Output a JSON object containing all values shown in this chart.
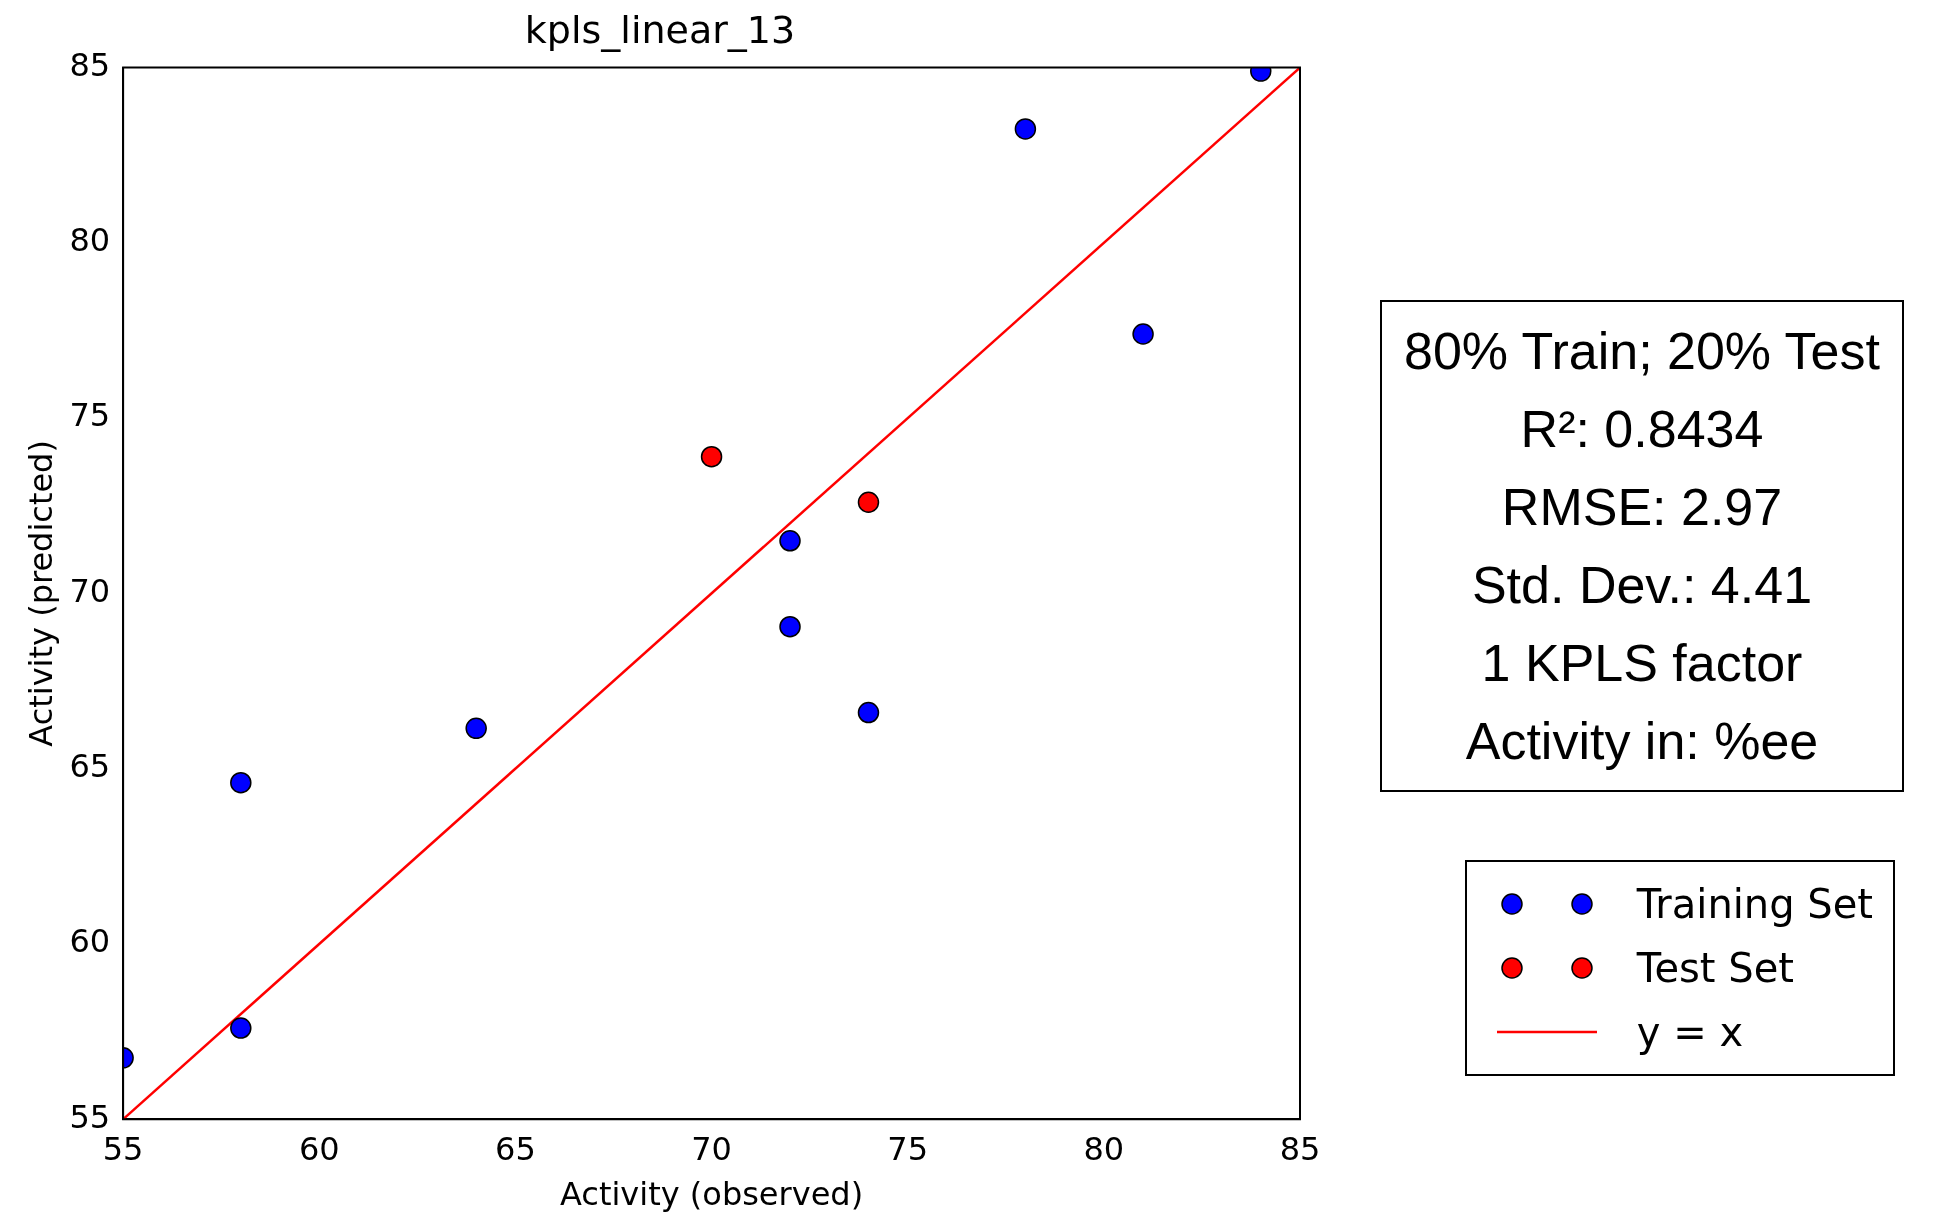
{
  "chart_data": {
    "type": "scatter",
    "title": "kpls_linear_13",
    "xlabel": "Activity (observed)",
    "ylabel": "Activity (predicted)",
    "xlim": [
      55,
      85
    ],
    "ylim": [
      55,
      85
    ],
    "xticks": [
      55,
      60,
      65,
      70,
      75,
      80,
      85
    ],
    "yticks": [
      55,
      60,
      65,
      70,
      75,
      80,
      85
    ],
    "grid": false,
    "legend": "bottom right",
    "marker": "circle",
    "annotations": [
      "80% Train; 20% Test",
      "R²: 0.8434",
      "RMSE: 2.97",
      "Std. Dev.: 4.41",
      "1 KPLS factor",
      "Activity in: %ee"
    ],
    "series": [
      {
        "name": "Training Set",
        "color": "#0000ff",
        "x": [
          55,
          58,
          58,
          64,
          72,
          72,
          74,
          78,
          81,
          84
        ],
        "values": [
          56.75,
          64.6,
          57.6,
          66.15,
          71.5,
          69.05,
          66.6,
          83.25,
          77.4,
          84.9
        ]
      },
      {
        "name": "Test Set",
        "color": "#ff0000",
        "x": [
          70,
          74
        ],
        "values": [
          73.9,
          72.6
        ]
      },
      {
        "name": "y = x",
        "type": "line",
        "color": "#ff0000",
        "marker": "none",
        "line_style": "solid",
        "x": [
          55,
          85
        ],
        "values": [
          55,
          85
        ]
      }
    ]
  }
}
